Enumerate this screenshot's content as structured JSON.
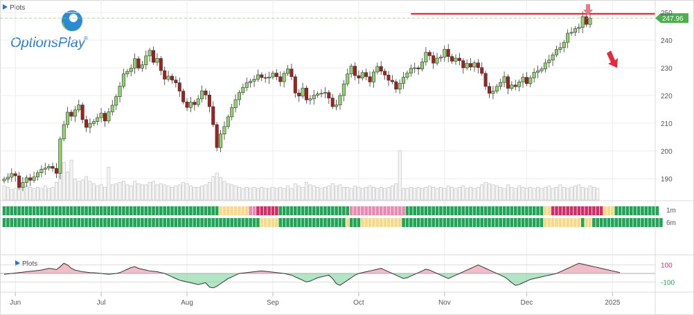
{
  "panel": {
    "title": "Plots",
    "indicator_title": "Plots",
    "logo_text": "OptionsPlay",
    "logo_mark": "®",
    "band_label_1": "1m",
    "band_label_2": "6m"
  },
  "chart_data": [
    {
      "type": "candlestick",
      "title": "",
      "xlabel": "",
      "ylabel": "",
      "months": [
        "Jun",
        "Jul",
        "Aug",
        "Sep",
        "Oct",
        "Nov",
        "Dec",
        "2025"
      ],
      "yticks": [
        190,
        200,
        210,
        220,
        230,
        240,
        250
      ],
      "ylim": [
        182,
        252
      ],
      "last_price": "247.96",
      "resistance": 249.5,
      "start_open": 189.2,
      "closes": [
        189.8,
        190.5,
        191.8,
        191.0,
        186.8,
        188.6,
        190.3,
        189.4,
        190.6,
        192.1,
        193.4,
        193.8,
        194.4,
        193.7,
        191.9,
        204.3,
        209.5,
        214.0,
        212.5,
        214.8,
        216.6,
        211.3,
        208.5,
        209.9,
        210.6,
        212.0,
        213.6,
        210.8,
        214.1,
        216.5,
        219.6,
        223.4,
        227.8,
        228.7,
        229.9,
        233.3,
        229.9,
        231.1,
        234.3,
        236.3,
        232.0,
        233.4,
        229.0,
        225.9,
        227.0,
        225.6,
        224.6,
        221.6,
        217.7,
        215.7,
        217.6,
        216.7,
        218.8,
        221.7,
        220.2,
        216.0,
        209.5,
        201.2,
        206.1,
        208.8,
        212.3,
        215.6,
        218.5,
        221.1,
        222.9,
        224.6,
        225.2,
        225.9,
        227.5,
        226.5,
        226.3,
        226.7,
        228.1,
        226.8,
        225.0,
        228.0,
        229.6,
        226.8,
        220.9,
        219.8,
        222.7,
        218.4,
        218.8,
        220.1,
        220.6,
        220.8,
        221.1,
        219.1,
        216.0,
        216.6,
        220.0,
        224.2,
        227.8,
        230.6,
        227.2,
        226.3,
        228.3,
        226.8,
        224.9,
        228.5,
        230.5,
        228.8,
        227.4,
        225.5,
        225.0,
        222.3,
        224.4,
        226.6,
        228.1,
        229.8,
        230.0,
        229.6,
        232.1,
        235.6,
        234.4,
        231.7,
        233.5,
        233.9,
        236.7,
        234.1,
        232.4,
        233.5,
        232.6,
        230.0,
        231.6,
        230.3,
        231.8,
        230.1,
        228.0,
        223.3,
        220.8,
        221.6,
        223.3,
        224.7,
        226.8,
        222.6,
        223.8,
        223.2,
        224.9,
        226.6,
        224.3,
        226.4,
        228.4,
        228.9,
        229.6,
        231.8,
        232.8,
        234.7,
        236.6,
        237.3,
        239.2,
        242.5,
        242.8,
        244.2,
        244.6,
        248.5,
        245.7,
        247.96
      ],
      "volume": [
        1.2,
        1.1,
        0.9,
        1.0,
        1.6,
        1.3,
        1.2,
        1.1,
        1.0,
        1.1,
        1.0,
        1.2,
        1.0,
        1.1,
        1.5,
        2.6,
        3.2,
        2.4,
        1.9,
        1.8,
        1.6,
        1.7,
        2.0,
        1.6,
        1.4,
        1.2,
        1.3,
        1.1,
        1.2,
        1.3,
        1.4,
        1.5,
        1.6,
        1.3,
        1.2,
        1.6,
        1.4,
        1.3,
        1.3,
        1.5,
        1.6,
        1.3,
        1.4,
        1.3,
        1.2,
        1.1,
        1.2,
        1.3,
        1.5,
        1.4,
        1.2,
        1.1,
        1.1,
        1.2,
        1.3,
        1.5,
        2.0,
        2.3,
        1.9,
        1.6,
        1.4,
        1.3,
        1.2,
        1.1,
        1.0,
        1.1,
        1.0,
        1.1,
        1.0,
        1.1,
        1.0,
        1.0,
        1.1,
        1.0,
        1.1,
        1.0,
        1.2,
        1.0,
        1.4,
        1.2,
        1.1,
        1.5,
        1.3,
        1.2,
        1.1,
        1.0,
        1.1,
        1.2,
        1.4,
        1.2,
        1.3,
        1.1,
        1.1,
        1.0,
        1.2,
        1.1,
        1.0,
        1.1,
        1.2,
        1.1,
        1.0,
        1.1,
        1.0,
        1.1,
        1.2,
        1.4,
        1.1,
        1.0,
        1.0,
        1.1,
        1.0,
        1.1,
        1.0,
        1.1,
        1.2,
        1.1,
        1.0,
        1.1,
        1.0,
        1.2,
        1.1,
        1.0,
        1.1,
        1.2,
        1.0,
        1.1,
        1.0,
        1.1,
        1.3,
        1.5,
        1.4,
        1.3,
        1.2,
        1.1,
        1.0,
        1.3,
        1.1,
        1.0,
        1.2,
        1.1,
        1.0,
        1.1,
        1.0,
        1.1,
        1.0,
        1.1,
        1.2,
        1.0,
        1.1,
        1.3,
        1.1,
        1.0,
        1.1,
        1.2,
        1.3,
        1.1,
        1.0,
        1.2,
        1.1,
        1.0
      ],
      "spikes": {
        "18": 3.4,
        "28": 2.8,
        "106": 4.2
      }
    },
    {
      "type": "heatmap",
      "rows": [
        "1m",
        "6m"
      ],
      "state_colors": {
        "G": "#22a356",
        "L": "#5bc78a",
        "Y": "#f6d98a",
        "P": "#e98ab0",
        "R": "#cf2e67"
      },
      "segments_1m": [
        [
          "G",
          58
        ],
        [
          "Y",
          8
        ],
        [
          "P",
          2
        ],
        [
          "R",
          6
        ],
        [
          "G",
          19
        ],
        [
          "P",
          15
        ],
        [
          "G",
          37
        ],
        [
          "Y",
          2
        ],
        [
          "R",
          14
        ],
        [
          "Y",
          3
        ],
        [
          "G",
          12
        ]
      ],
      "segments_6m": [
        [
          "G",
          69
        ],
        [
          "Y",
          5
        ],
        [
          "G",
          18
        ],
        [
          "Y",
          1
        ],
        [
          "G",
          3
        ],
        [
          "Y",
          11
        ],
        [
          "G",
          38
        ],
        [
          "Y",
          10
        ],
        [
          "G",
          1
        ],
        [
          "Y",
          2
        ],
        [
          "G",
          19
        ]
      ]
    },
    {
      "type": "line",
      "title": "",
      "yticks": [
        100,
        -100
      ],
      "ylim": [
        -220,
        220
      ],
      "values": [
        -10,
        -5,
        0,
        5,
        10,
        15,
        20,
        25,
        30,
        35,
        40,
        50,
        60,
        55,
        45,
        80,
        120,
        100,
        60,
        40,
        30,
        20,
        15,
        10,
        8,
        5,
        0,
        -5,
        -10,
        -5,
        0,
        10,
        30,
        50,
        70,
        80,
        60,
        50,
        40,
        30,
        25,
        20,
        10,
        0,
        -20,
        -40,
        -60,
        -80,
        -90,
        -100,
        -110,
        -120,
        -130,
        -120,
        -110,
        -160,
        -170,
        -150,
        -120,
        -90,
        -60,
        -40,
        -20,
        0,
        5,
        10,
        15,
        20,
        25,
        30,
        25,
        20,
        15,
        10,
        5,
        0,
        -10,
        -20,
        -40,
        -60,
        -80,
        -100,
        -90,
        -70,
        -50,
        -40,
        -30,
        -20,
        -60,
        -120,
        -140,
        -110,
        -80,
        -50,
        -20,
        0,
        10,
        20,
        30,
        40,
        50,
        60,
        40,
        20,
        0,
        -20,
        -40,
        -60,
        -50,
        -30,
        -10,
        10,
        30,
        50,
        40,
        20,
        0,
        -20,
        -40,
        -60,
        -40,
        -20,
        0,
        20,
        40,
        60,
        80,
        100,
        80,
        60,
        40,
        20,
        0,
        -20,
        -40,
        -70,
        -110,
        -140,
        -130,
        -110,
        -90,
        -70,
        -60,
        -50,
        -40,
        -30,
        -20,
        -10,
        0,
        20,
        40,
        60,
        80,
        100,
        120,
        110,
        100,
        90,
        80,
        70,
        60,
        50,
        40,
        30,
        20,
        10
      ]
    }
  ]
}
